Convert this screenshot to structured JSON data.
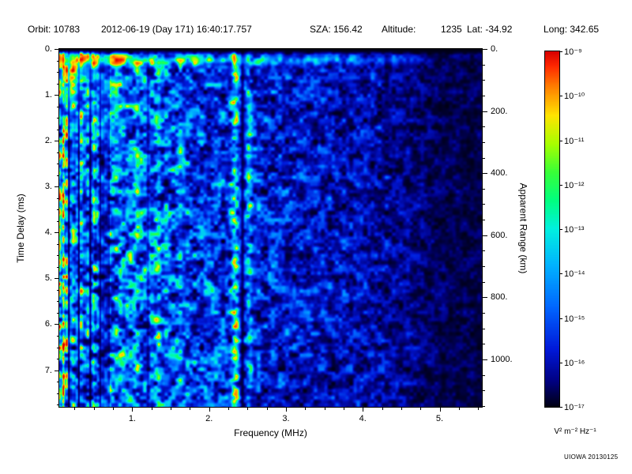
{
  "header": {
    "orbit": "Orbit: 10783",
    "datetime": "2012-06-19 (Day 171) 16:40:17.757",
    "sza": "SZA: 156.42",
    "altitude_label": "Altitude:",
    "altitude_value": "1235",
    "lat": "Lat: -34.92",
    "long": "Long: 342.65"
  },
  "credit": "UIOWA 20130125",
  "chart_data": {
    "type": "heatmap",
    "title": "",
    "xlabel": "Frequency (MHz)",
    "ylabel": "Time Delay (ms)",
    "y2label": "Apparent Range (km)",
    "x_range": [
      0.05,
      5.55
    ],
    "y_range": [
      0,
      7.8
    ],
    "y2_range": [
      0,
      1153
    ],
    "x_ticks": [
      {
        "v": 1,
        "label": "1."
      },
      {
        "v": 2,
        "label": "2."
      },
      {
        "v": 3,
        "label": "3."
      },
      {
        "v": 4,
        "label": "4."
      },
      {
        "v": 5,
        "label": "5."
      }
    ],
    "y_ticks": [
      {
        "v": 0,
        "label": "0."
      },
      {
        "v": 1,
        "label": "1."
      },
      {
        "v": 2,
        "label": "2."
      },
      {
        "v": 3,
        "label": "3."
      },
      {
        "v": 4,
        "label": "4."
      },
      {
        "v": 5,
        "label": "5."
      },
      {
        "v": 6,
        "label": "6."
      },
      {
        "v": 7,
        "label": "7."
      }
    ],
    "y2_ticks": [
      {
        "v": 0,
        "label": "0."
      },
      {
        "v": 200,
        "label": "200."
      },
      {
        "v": 400,
        "label": "400."
      },
      {
        "v": 600,
        "label": "600."
      },
      {
        "v": 800,
        "label": "800."
      },
      {
        "v": 1000,
        "label": "1000."
      }
    ],
    "x_minor_step": 0.25,
    "y_minor_step": 0.25,
    "y2_minor_step": 50,
    "colorbar": {
      "unit": "V² m⁻² Hz⁻¹",
      "ticks": [
        "10⁻⁹",
        "10⁻¹⁰",
        "10⁻¹¹",
        "10⁻¹²",
        "10⁻¹³",
        "10⁻¹⁴",
        "10⁻¹⁵",
        "10⁻¹⁶",
        "10⁻¹⁷"
      ],
      "scale_min_exponent": -17,
      "scale_max_exponent": -9,
      "stops": [
        {
          "p": 0.0,
          "c": "#000014"
        },
        {
          "p": 0.07,
          "c": "#000080"
        },
        {
          "p": 0.16,
          "c": "#0018d8"
        },
        {
          "p": 0.28,
          "c": "#0066ff"
        },
        {
          "p": 0.4,
          "c": "#00b4ff"
        },
        {
          "p": 0.5,
          "c": "#00f0e0"
        },
        {
          "p": 0.58,
          "c": "#00ff80"
        },
        {
          "p": 0.66,
          "c": "#38ff38"
        },
        {
          "p": 0.74,
          "c": "#a8ff00"
        },
        {
          "p": 0.82,
          "c": "#ffe400"
        },
        {
          "p": 0.9,
          "c": "#ff8000"
        },
        {
          "p": 0.96,
          "c": "#ff2800"
        },
        {
          "p": 1.0,
          "c": "#d80000"
        }
      ]
    },
    "description": "Radar-sounder ionogram spectrogram: diffuse blue speckle noise strongest below ~2 MHz, a bright cyan-green horizontal echo band near 0.25 ms delay extending to ~4.7 MHz, bright full-height vertical interference lines near 2.33 and 2.52 MHz separated by a dark gap, bright streaky region with narrow black dropout lines below ~0.6 MHz, and signal fading to near-black above ~4.5 MHz.",
    "spectrogram": {
      "seed": 20130125,
      "base": {
        "amp0": 0.7,
        "decay": 1.9,
        "floor": 0.12,
        "cut_f": 4.15
      },
      "echo_band": {
        "t": 0.24,
        "tw": 0.09,
        "gain": 0.55,
        "f_end": 4.7
      },
      "surface_patch": {
        "f": 0.1,
        "t": 0.4,
        "fw": 0.45,
        "tw": 1.0,
        "gain": 0.4
      },
      "vertical_lines": [
        {
          "f": 2.33,
          "w": 0.045,
          "g": 0.38
        },
        {
          "f": 2.52,
          "w": 0.04,
          "g": 0.22
        },
        {
          "f": 1.33,
          "w": 0.035,
          "g": 0.12
        },
        {
          "f": 1.05,
          "w": 0.03,
          "g": 0.09
        },
        {
          "f": 1.62,
          "w": 0.03,
          "g": 0.08
        },
        {
          "f": 0.85,
          "w": 0.03,
          "g": 0.08
        }
      ],
      "dark_lines": [
        {
          "f": 2.43,
          "w": 0.025,
          "g": 0.75
        },
        {
          "f": 0.17,
          "w": 0.015,
          "g": 0.85
        },
        {
          "f": 0.3,
          "w": 0.015,
          "g": 0.85
        },
        {
          "f": 0.45,
          "w": 0.015,
          "g": 0.75
        },
        {
          "f": 0.58,
          "w": 0.012,
          "g": 0.6
        },
        {
          "f": 1.2,
          "w": 0.02,
          "g": 0.45
        }
      ]
    }
  }
}
